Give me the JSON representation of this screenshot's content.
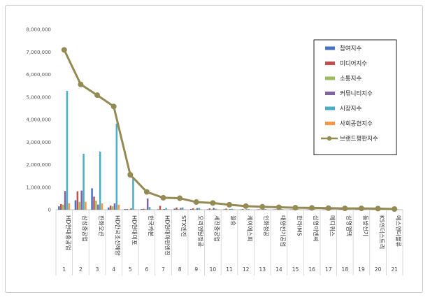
{
  "chart_data": {
    "type": "bar",
    "ylim": [
      0,
      8000000
    ],
    "y_ticks": [
      "0",
      "1,000,000",
      "2,000,000",
      "3,000,000",
      "4,000,000",
      "5,000,000",
      "6,000,000",
      "7,000,000",
      "8,000,000"
    ],
    "categories": [
      "HD현대중공업",
      "삼성중공업",
      "한화오션",
      "HD한국조선해양",
      "HD현대미포",
      "한국카본",
      "HD현대마린엔진",
      "STX엔진",
      "오리엔탈정공",
      "세진중공업",
      "월승",
      "케이에스피",
      "인화정공",
      "대양전기공업",
      "한라IMS",
      "삼영이엔씨",
      "메디쿼스",
      "삼영엠텍",
      "동방선기",
      "KS인더스트리",
      "에스엔더블류"
    ],
    "ranks": [
      "1",
      "2",
      "3",
      "4",
      "5",
      "6",
      "7",
      "8",
      "9",
      "10",
      "11",
      "12",
      "13",
      "14",
      "15",
      "16",
      "17",
      "18",
      "19",
      "20",
      "21"
    ],
    "legend_position": "top-right",
    "series": [
      {
        "name": "참여지수",
        "color": "#4472c4",
        "kind": "bar",
        "values": [
          150000,
          420000,
          950000,
          100000,
          30000,
          30000,
          20000,
          50000,
          30000,
          20000,
          20000,
          10000,
          10000,
          10000,
          10000,
          10000,
          10000,
          10000,
          10000,
          10000,
          10000
        ]
      },
      {
        "name": "미디어지수",
        "color": "#c0504d",
        "kind": "bar",
        "values": [
          250000,
          820000,
          580000,
          180000,
          30000,
          40000,
          170000,
          100000,
          60000,
          60000,
          50000,
          30000,
          20000,
          20000,
          20000,
          20000,
          20000,
          20000,
          20000,
          20000,
          20000
        ]
      },
      {
        "name": "소통지수",
        "color": "#9bbb59",
        "kind": "bar",
        "values": [
          220000,
          350000,
          400000,
          150000,
          20000,
          30000,
          20000,
          30000,
          20000,
          20000,
          20000,
          10000,
          10000,
          10000,
          10000,
          10000,
          10000,
          10000,
          10000,
          10000,
          10000
        ]
      },
      {
        "name": "커뮤니티지수",
        "color": "#8064a2",
        "kind": "bar",
        "values": [
          830000,
          850000,
          230000,
          280000,
          60000,
          500000,
          30000,
          80000,
          70000,
          80000,
          30000,
          20000,
          30000,
          20000,
          20000,
          20000,
          20000,
          20000,
          20000,
          20000,
          20000
        ]
      },
      {
        "name": "시장지수",
        "color": "#4bacc6",
        "kind": "bar",
        "values": [
          5270000,
          2480000,
          2580000,
          3820000,
          1410000,
          120000,
          80000,
          100000,
          80000,
          40000,
          40000,
          30000,
          30000,
          30000,
          20000,
          20000,
          20000,
          20000,
          20000,
          20000,
          20000
        ]
      },
      {
        "name": "사회공헌지수",
        "color": "#f79646",
        "kind": "bar",
        "values": [
          290000,
          350000,
          280000,
          220000,
          20000,
          20000,
          20000,
          20000,
          20000,
          20000,
          20000,
          10000,
          10000,
          10000,
          10000,
          10000,
          10000,
          10000,
          10000,
          10000,
          10000
        ]
      },
      {
        "name": "브랜드평판지수",
        "color": "#948a54",
        "kind": "line",
        "values": [
          7090000,
          5560000,
          5080000,
          4580000,
          1550000,
          790000,
          530000,
          510000,
          340000,
          300000,
          220000,
          160000,
          130000,
          110000,
          90000,
          80000,
          70000,
          60000,
          60000,
          50000,
          30000
        ]
      }
    ]
  }
}
